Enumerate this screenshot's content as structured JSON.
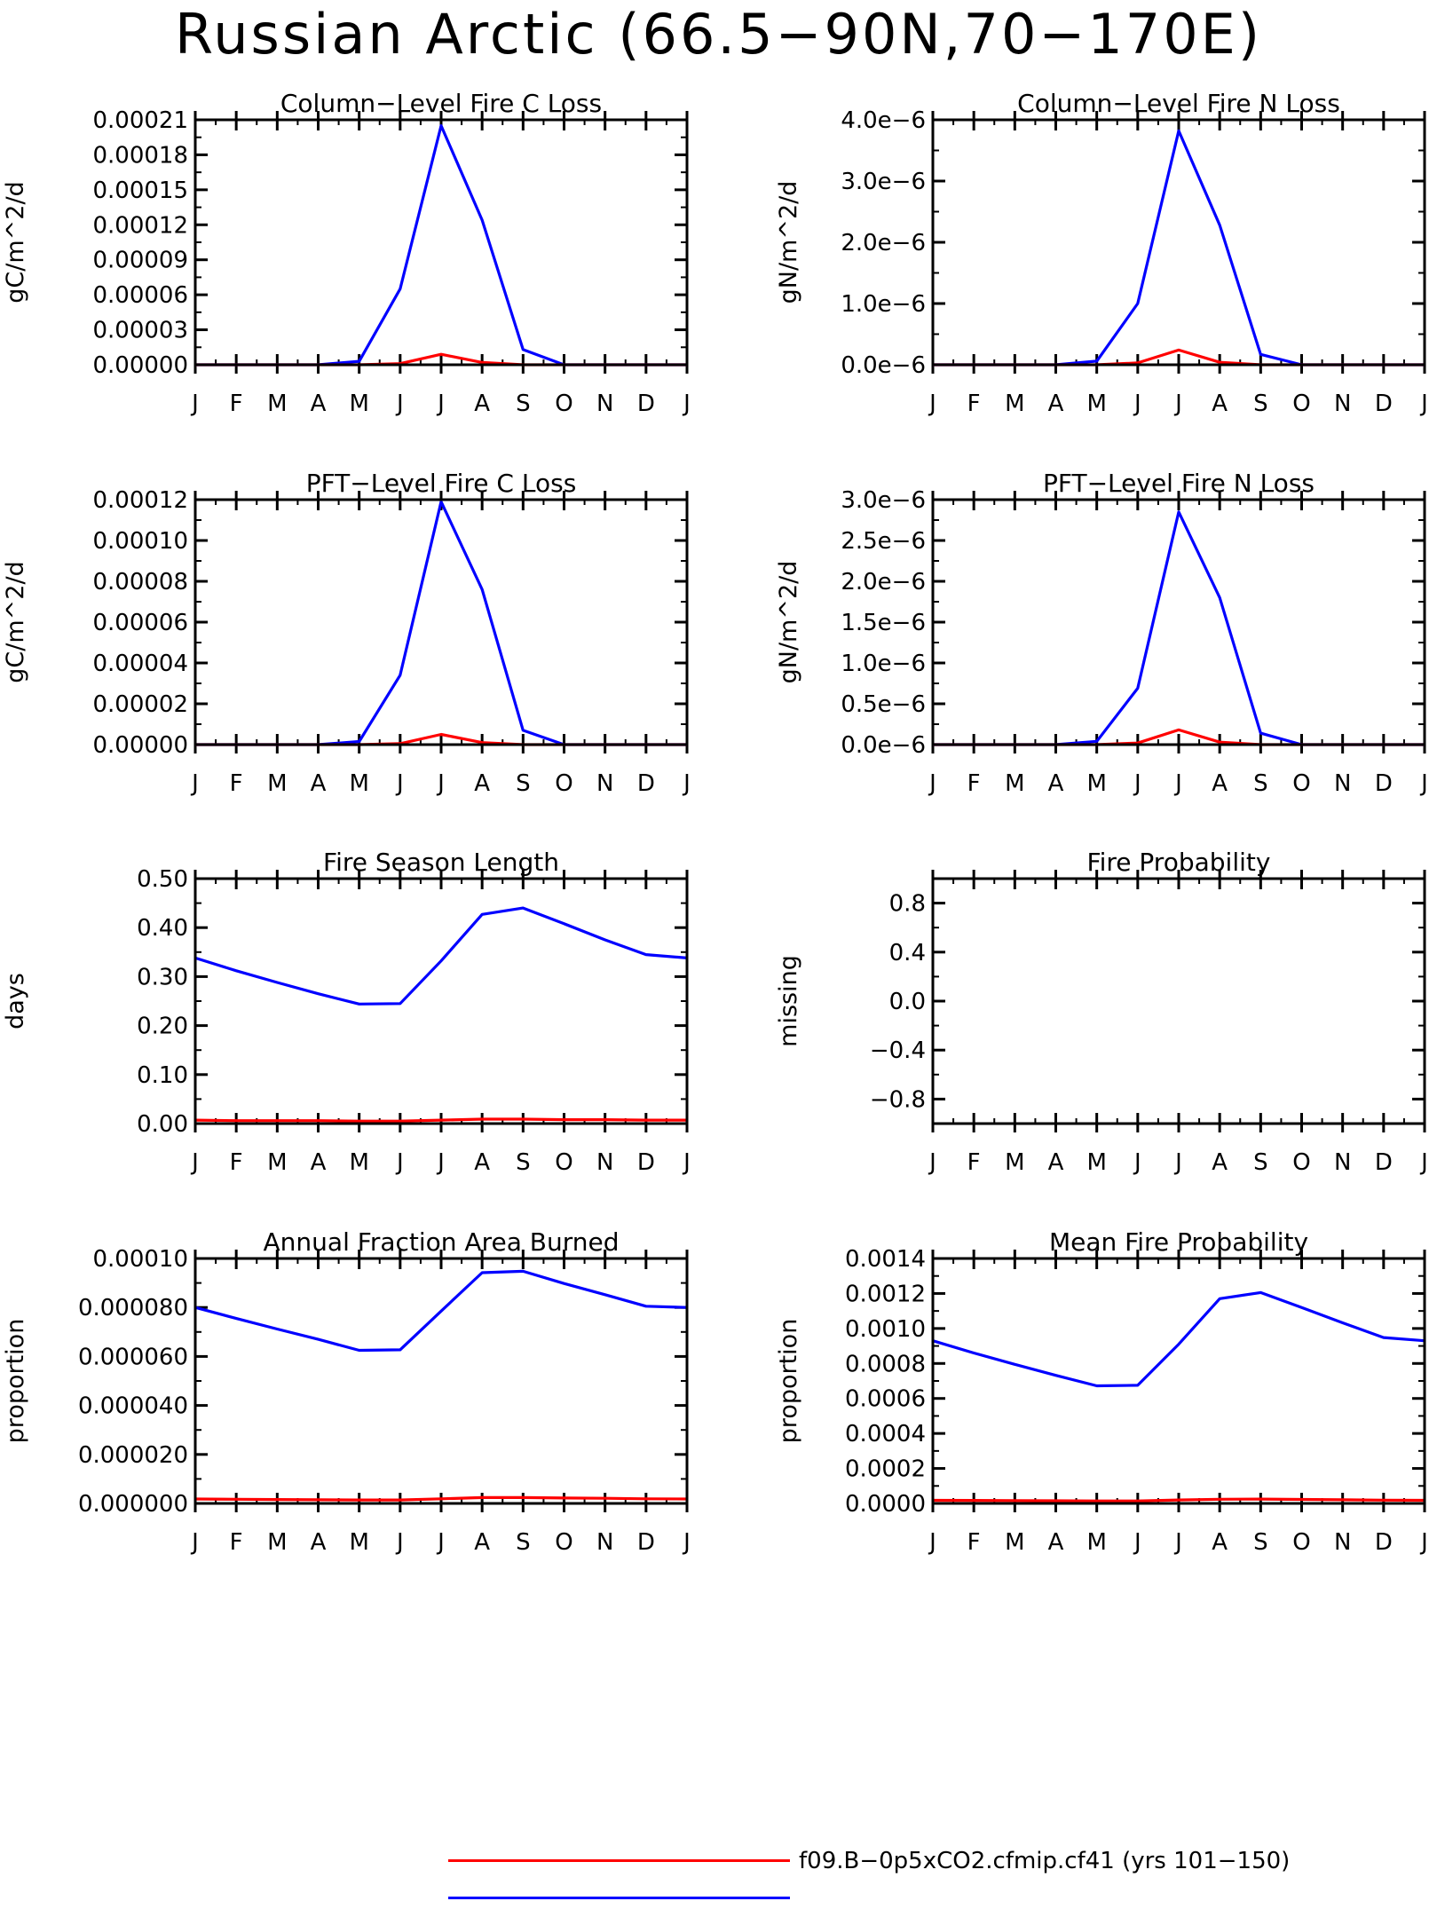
{
  "figure_title": "Russian Arctic (66.5−90N,70−170E)",
  "legend": [
    {
      "label": "f09.B−0p5xCO2.cfmip.cf41 (yrs 101−150)",
      "color": "#ff0000"
    },
    {
      "label": "",
      "color": "#0000ff"
    }
  ],
  "colors": {
    "axes": "#000000",
    "series_1": "#0000ff",
    "series_2": "#ff0000"
  },
  "chart_data": [
    {
      "type": "line",
      "title": "Column−Level Fire C Loss",
      "ylabel": "gC/m^2/d",
      "xlabel": "",
      "categories": [
        "J",
        "F",
        "M",
        "A",
        "M",
        "J",
        "J",
        "A",
        "S",
        "O",
        "N",
        "D",
        "J"
      ],
      "ylim": [
        0,
        0.00021
      ],
      "yticks": [
        0,
        3e-05,
        6e-05,
        9e-05,
        0.00012,
        0.00015,
        0.00018,
        0.00021
      ],
      "yticklabels": [
        "0.00000",
        "0.00003",
        "0.00006",
        "0.00009",
        "0.00012",
        "0.00015",
        "0.00018",
        "0.00021"
      ],
      "series": [
        {
          "color": "#0000ff",
          "values": [
            0,
            0,
            0,
            0,
            3e-06,
            6.5e-05,
            0.000205,
            0.000124,
            1.3e-05,
            0,
            0,
            0,
            0
          ]
        },
        {
          "color": "#ff0000",
          "values": [
            0,
            0,
            0,
            0,
            0,
            1e-06,
            9e-06,
            2e-06,
            0,
            0,
            0,
            0,
            0
          ]
        }
      ]
    },
    {
      "type": "line",
      "title": "Column−Level Fire N Loss",
      "ylabel": "gN/m^2/d",
      "xlabel": "",
      "categories": [
        "J",
        "F",
        "M",
        "A",
        "M",
        "J",
        "J",
        "A",
        "S",
        "O",
        "N",
        "D",
        "J"
      ],
      "ylim": [
        0,
        4e-06
      ],
      "yticks": [
        0,
        1e-06,
        2e-06,
        3e-06,
        4e-06
      ],
      "yticklabels": [
        "0.0e−6",
        "1.0e−6",
        "2.0e−6",
        "3.0e−6",
        "4.0e−6"
      ],
      "series": [
        {
          "color": "#0000ff",
          "values": [
            0,
            0,
            0,
            0,
            6e-08,
            1e-06,
            3.82e-06,
            2.28e-06,
            1.7e-07,
            0,
            0,
            0,
            0
          ]
        },
        {
          "color": "#ff0000",
          "values": [
            0,
            0,
            0,
            0,
            0,
            3e-08,
            2.4e-07,
            4e-08,
            0,
            0,
            0,
            0,
            0
          ]
        }
      ]
    },
    {
      "type": "line",
      "title": "PFT−Level Fire C Loss",
      "ylabel": "gC/m^2/d",
      "xlabel": "",
      "categories": [
        "J",
        "F",
        "M",
        "A",
        "M",
        "J",
        "J",
        "A",
        "S",
        "O",
        "N",
        "D",
        "J"
      ],
      "ylim": [
        0,
        0.00012
      ],
      "yticks": [
        0,
        2e-05,
        4e-05,
        6e-05,
        8e-05,
        0.0001,
        0.00012
      ],
      "yticklabels": [
        "0.00000",
        "0.00002",
        "0.00004",
        "0.00006",
        "0.00008",
        "0.00010",
        "0.00012"
      ],
      "series": [
        {
          "color": "#0000ff",
          "values": [
            0,
            0,
            0,
            0,
            1.5e-06,
            3.4e-05,
            0.000119,
            7.6e-05,
            7e-06,
            0,
            0,
            0,
            0
          ]
        },
        {
          "color": "#ff0000",
          "values": [
            0,
            0,
            0,
            0,
            0,
            5e-07,
            5e-06,
            1e-06,
            0,
            0,
            0,
            0,
            0
          ]
        }
      ]
    },
    {
      "type": "line",
      "title": "PFT−Level Fire N Loss",
      "ylabel": "gN/m^2/d",
      "xlabel": "",
      "categories": [
        "J",
        "F",
        "M",
        "A",
        "M",
        "J",
        "J",
        "A",
        "S",
        "O",
        "N",
        "D",
        "J"
      ],
      "ylim": [
        0,
        3e-06
      ],
      "yticks": [
        0,
        5e-07,
        1e-06,
        1.5e-06,
        2e-06,
        2.5e-06,
        3e-06
      ],
      "yticklabels": [
        "0.0e−6",
        "0.5e−6",
        "1.0e−6",
        "1.5e−6",
        "2.0e−6",
        "2.5e−6",
        "3.0e−6"
      ],
      "series": [
        {
          "color": "#0000ff",
          "values": [
            0,
            0,
            0,
            0,
            4e-08,
            6.9e-07,
            2.85e-06,
            1.8e-06,
            1.4e-07,
            0,
            0,
            0,
            0
          ]
        },
        {
          "color": "#ff0000",
          "values": [
            0,
            0,
            0,
            0,
            0,
            2e-08,
            1.8e-07,
            3e-08,
            0,
            0,
            0,
            0,
            0
          ]
        }
      ]
    },
    {
      "type": "line",
      "title": "Fire Season Length",
      "ylabel": "days",
      "xlabel": "",
      "categories": [
        "J",
        "F",
        "M",
        "A",
        "M",
        "J",
        "J",
        "A",
        "S",
        "O",
        "N",
        "D",
        "J"
      ],
      "ylim": [
        0,
        0.5
      ],
      "yticks": [
        0,
        0.1,
        0.2,
        0.3,
        0.4,
        0.5
      ],
      "yticklabels": [
        "0.00",
        "0.10",
        "0.20",
        "0.30",
        "0.40",
        "0.50"
      ],
      "series": [
        {
          "color": "#0000ff",
          "values": [
            0.338,
            0.312,
            0.288,
            0.265,
            0.244,
            0.245,
            0.332,
            0.427,
            0.44,
            0.408,
            0.375,
            0.345,
            0.338
          ]
        },
        {
          "color": "#ff0000",
          "values": [
            0.007,
            0.006,
            0.006,
            0.006,
            0.005,
            0.005,
            0.007,
            0.009,
            0.009,
            0.008,
            0.008,
            0.007,
            0.007
          ]
        }
      ]
    },
    {
      "type": "line",
      "title": "Fire Probability",
      "ylabel": "missing",
      "xlabel": "",
      "categories": [
        "J",
        "F",
        "M",
        "A",
        "M",
        "J",
        "J",
        "A",
        "S",
        "O",
        "N",
        "D",
        "J"
      ],
      "ylim": [
        -1,
        1
      ],
      "yticks": [
        -0.8,
        -0.4,
        0,
        0.4,
        0.8
      ],
      "yticklabels": [
        "−0.8",
        "−0.4",
        "0.0",
        "0.4",
        "0.8"
      ],
      "series": []
    },
    {
      "type": "line",
      "title": "Annual Fraction Area Burned",
      "ylabel": "proportion",
      "xlabel": "",
      "categories": [
        "J",
        "F",
        "M",
        "A",
        "M",
        "J",
        "J",
        "A",
        "S",
        "O",
        "N",
        "D",
        "J"
      ],
      "ylim": [
        0,
        0.0001
      ],
      "yticks": [
        0,
        2e-05,
        4e-05,
        6e-05,
        8e-05,
        0.0001
      ],
      "yticklabels": [
        "0.000000",
        "0.000020",
        "0.000040",
        "0.000060",
        "0.000080",
        "0.00010"
      ],
      "series": [
        {
          "color": "#0000ff",
          "values": [
            8e-05,
            7.55e-05,
            7.12e-05,
            6.7e-05,
            6.25e-05,
            6.27e-05,
            7.85e-05,
            9.42e-05,
            9.48e-05,
            8.98e-05,
            8.52e-05,
            8.05e-05,
            8e-05
          ]
        },
        {
          "color": "#ff0000",
          "values": [
            1.8e-06,
            1.7e-06,
            1.6e-06,
            1.5e-06,
            1.4e-06,
            1.4e-06,
            1.9e-06,
            2.4e-06,
            2.4e-06,
            2.2e-06,
            2.1e-06,
            1.9e-06,
            1.8e-06
          ]
        }
      ]
    },
    {
      "type": "line",
      "title": "Mean Fire Probability",
      "ylabel": "proportion",
      "xlabel": "",
      "categories": [
        "J",
        "F",
        "M",
        "A",
        "M",
        "J",
        "J",
        "A",
        "S",
        "O",
        "N",
        "D",
        "J"
      ],
      "ylim": [
        0,
        0.0014
      ],
      "yticks": [
        0,
        0.0002,
        0.0004,
        0.0006,
        0.0008,
        0.001,
        0.0012,
        0.0014
      ],
      "yticklabels": [
        "0.0000",
        "0.0002",
        "0.0004",
        "0.0006",
        "0.0008",
        "0.0010",
        "0.0012",
        "0.0014"
      ],
      "series": [
        {
          "color": "#0000ff",
          "values": [
            0.00093,
            0.00086,
            0.000795,
            0.000732,
            0.000672,
            0.000675,
            0.00091,
            0.00117,
            0.001205,
            0.00112,
            0.001032,
            0.000948,
            0.00093
          ]
        },
        {
          "color": "#ff0000",
          "values": [
            1.8e-05,
            1.7e-05,
            1.6e-05,
            1.5e-05,
            1.4e-05,
            1.4e-05,
            2e-05,
            2.4e-05,
            2.5e-05,
            2.3e-05,
            2.1e-05,
            1.9e-05,
            1.8e-05
          ]
        }
      ]
    }
  ]
}
